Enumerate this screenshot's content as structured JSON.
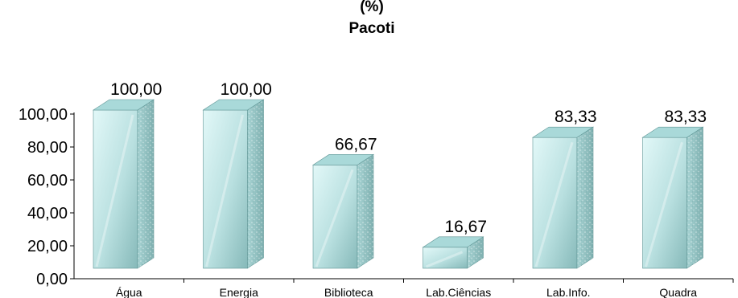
{
  "chart_data": {
    "type": "bar",
    "title_line1": "(%)",
    "title_line2": "Pacoti",
    "categories": [
      "Água",
      "Energia",
      "Biblioteca",
      "Lab.Ciências",
      "Lab.Info.",
      "Quadra"
    ],
    "values": [
      100.0,
      100.0,
      66.67,
      16.67,
      83.33,
      83.33
    ],
    "value_labels": [
      "100,00",
      "100,00",
      "66,67",
      "16,67",
      "83,33",
      "83,33"
    ],
    "yticks": [
      "0,00",
      "20,00",
      "40,00",
      "60,00",
      "80,00",
      "100,00"
    ],
    "ylim": [
      0,
      100
    ],
    "colors": {
      "front_light": "#d8f4f4",
      "front_dark": "#7fb3b3",
      "top": "#a9d9d9",
      "side": "#8fc1c1"
    }
  }
}
